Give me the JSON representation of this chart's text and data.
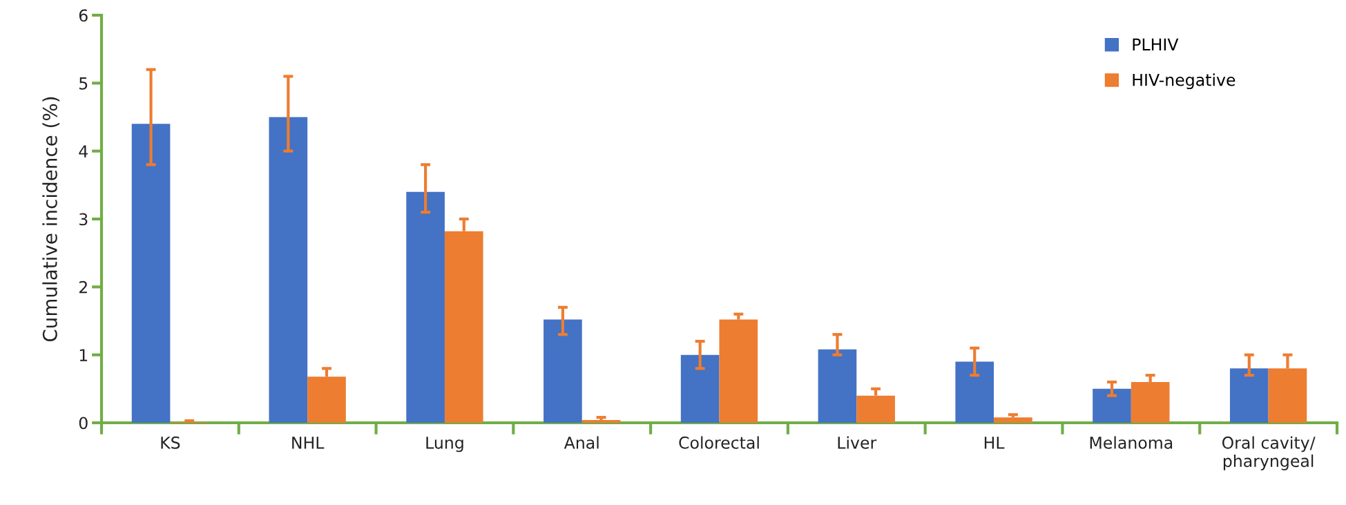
{
  "chart_data": {
    "type": "bar",
    "ylabel": "Cumulative incidence (%)",
    "categories": [
      "KS",
      "NHL",
      "Lung",
      "Anal",
      "Colorectal",
      "Liver",
      "HL",
      "Melanoma",
      "Oral cavity/\npharyngeal"
    ],
    "series": [
      {
        "name": "PLHIV",
        "color": "#4472c4",
        "values": [
          4.4,
          4.5,
          3.4,
          1.52,
          1.0,
          1.08,
          0.9,
          0.5,
          0.8
        ],
        "errors": [
          [
            3.8,
            5.2
          ],
          [
            4.0,
            5.1
          ],
          [
            3.1,
            3.8
          ],
          [
            1.3,
            1.7
          ],
          [
            0.8,
            1.2
          ],
          [
            1.0,
            1.3
          ],
          [
            0.7,
            1.1
          ],
          [
            0.4,
            0.6
          ],
          [
            0.7,
            1.0
          ]
        ]
      },
      {
        "name": "HIV-negative",
        "color": "#ed7d31",
        "values": [
          0.01,
          0.68,
          2.82,
          0.04,
          1.52,
          0.4,
          0.08,
          0.6,
          0.8
        ],
        "errors": [
          [
            0.01,
            0.03
          ],
          [
            0.68,
            0.8
          ],
          [
            2.82,
            3.0
          ],
          [
            0.04,
            0.08
          ],
          [
            1.52,
            1.6
          ],
          [
            0.4,
            0.5
          ],
          [
            0.08,
            0.12
          ],
          [
            0.6,
            0.7
          ],
          [
            0.8,
            1.0
          ]
        ]
      }
    ],
    "ylim": [
      0,
      6
    ],
    "yticks": [
      0,
      1,
      2,
      3,
      4,
      5,
      6
    ],
    "grid": false,
    "legend": "top right"
  }
}
